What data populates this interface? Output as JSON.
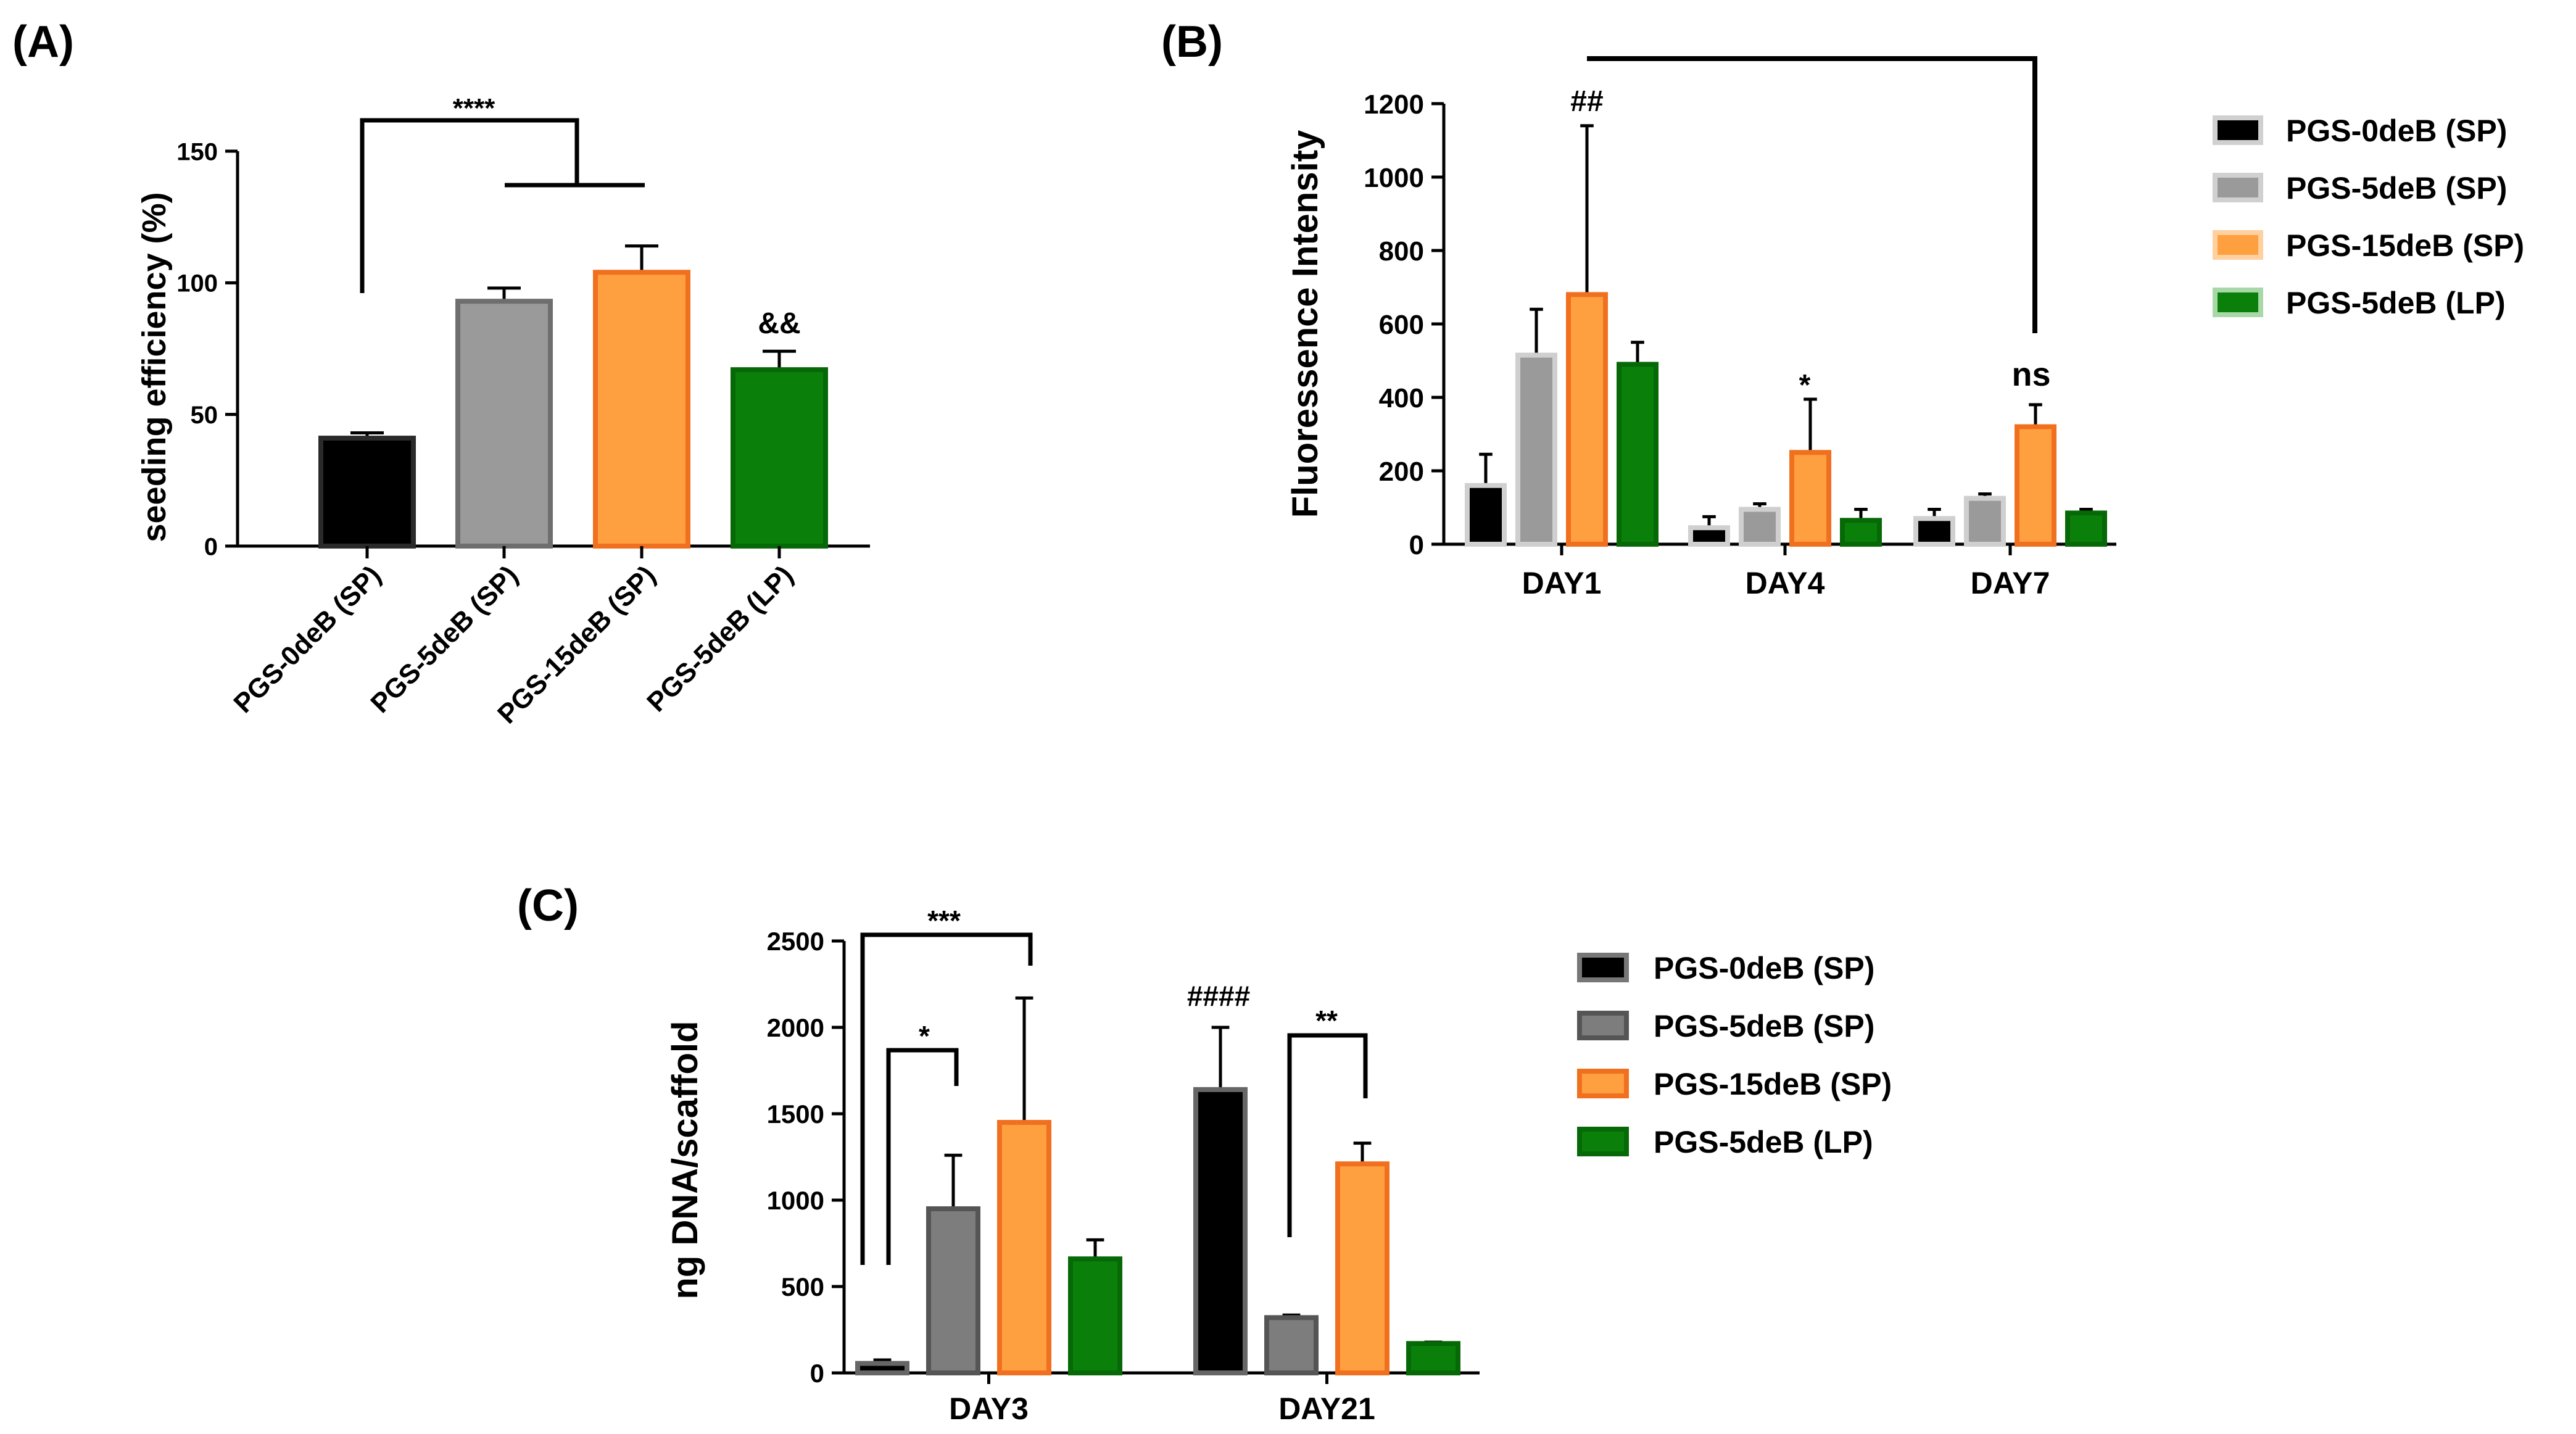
{
  "colors": {
    "PGS-0deB (SP)": "#000000",
    "PGS-5deB (SP)": "#9a9a9a",
    "PGS-15deB (SP)": "#ffa040",
    "PGS-5deB (LP)": "#0a800a",
    "edge_orange": "#f07020",
    "edge_green": "#066806",
    "edge_gray": "#6e6e6e",
    "c_gray": "#7d7d7d"
  },
  "chart_data": [
    {
      "panel": "(A)",
      "type": "bar",
      "title": "",
      "xlabel": "",
      "ylabel": "seeding efficiency (%)",
      "ylim": [
        0,
        150
      ],
      "yticks": [
        "0",
        "50",
        "100",
        "150"
      ],
      "categories": [
        "PGS-0deB (SP)",
        "PGS-5deB (SP)",
        "PGS-15deB (SP)",
        "PGS-5deB (LP)"
      ],
      "values": [
        41,
        93,
        104,
        67
      ],
      "errors": [
        2,
        5,
        10,
        7
      ],
      "annotations": [
        {
          "text": "****",
          "meaning": "PGS-0deB (SP) vs PGS-5deB (SP) & PGS-15deB (SP)"
        },
        {
          "text": "&&",
          "meaning": "above PGS-5deB (LP)"
        }
      ]
    },
    {
      "panel": "(B)",
      "type": "bar",
      "title": "",
      "xlabel": "",
      "ylabel": "Fluoressence Intensity",
      "ylim": [
        0,
        1200
      ],
      "yticks": [
        "0",
        "200",
        "400",
        "600",
        "800",
        "1000",
        "1200"
      ],
      "categories": [
        "DAY1",
        "DAY4",
        "DAY7"
      ],
      "series": [
        {
          "name": "PGS-0deB (SP)",
          "values": [
            160,
            45,
            70
          ],
          "errors": [
            85,
            30,
            25
          ]
        },
        {
          "name": "PGS-5deB (SP)",
          "values": [
            515,
            95,
            125
          ],
          "errors": [
            125,
            15,
            12
          ]
        },
        {
          "name": "PGS-15deB (SP)",
          "values": [
            680,
            250,
            320
          ],
          "errors": [
            460,
            145,
            60
          ]
        },
        {
          "name": "PGS-5deB (LP)",
          "values": [
            490,
            65,
            85
          ],
          "errors": [
            60,
            30,
            10
          ]
        }
      ],
      "annotations": [
        {
          "text": "##",
          "category": "DAY1"
        },
        {
          "text": "*",
          "category": "DAY4"
        },
        {
          "text": "ns",
          "category": "DAY7"
        }
      ],
      "legend": [
        "PGS-0deB (SP)",
        "PGS-5deB (SP)",
        "PGS-15deB (SP)",
        "PGS-5deB (LP)"
      ],
      "legend_position": "right"
    },
    {
      "panel": "(C)",
      "type": "bar",
      "title": "",
      "xlabel": "",
      "ylabel": "ng DNA/scaffold",
      "ylim": [
        0,
        2500
      ],
      "yticks": [
        "0",
        "500",
        "1000",
        "1500",
        "2000",
        "2500"
      ],
      "categories": [
        "DAY3",
        "DAY21"
      ],
      "series": [
        {
          "name": "PGS-0deB (SP)",
          "values": [
            55,
            1640
          ],
          "errors": [
            20,
            360
          ]
        },
        {
          "name": "PGS-5deB (SP)",
          "values": [
            950,
            320
          ],
          "errors": [
            310,
            15
          ]
        },
        {
          "name": "PGS-15deB (SP)",
          "values": [
            1450,
            1210
          ],
          "errors": [
            720,
            120
          ]
        },
        {
          "name": "PGS-5deB (LP)",
          "values": [
            660,
            170
          ],
          "errors": [
            110,
            8
          ]
        }
      ],
      "annotations": [
        {
          "text": "***",
          "category": "DAY3"
        },
        {
          "text": "*",
          "category": "DAY3"
        },
        {
          "text": "####",
          "category": "DAY21"
        },
        {
          "text": "**",
          "category": "DAY21"
        }
      ],
      "legend": [
        "PGS-0deB (SP)",
        "PGS-5deB (SP)",
        "PGS-15deB (SP)",
        "PGS-5deB (LP)"
      ],
      "legend_position": "right"
    }
  ]
}
